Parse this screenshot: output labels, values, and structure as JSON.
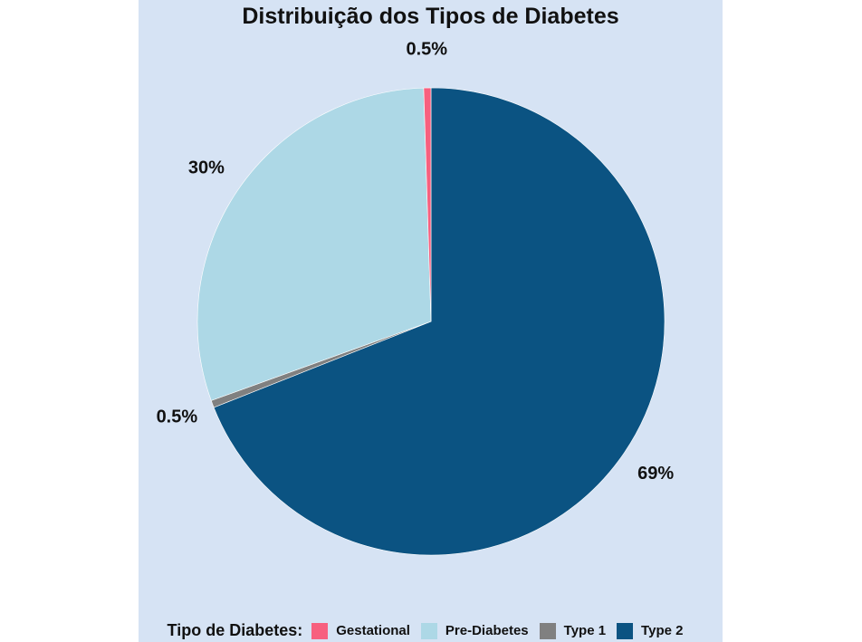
{
  "chart_data": {
    "type": "pie",
    "title": "Distribuição dos Tipos de Diabetes",
    "legend_title": "Tipo de Diabetes:",
    "legend_position": "bottom",
    "slices": [
      {
        "name": "Gestational",
        "value": 0.5,
        "label": "0.5%",
        "color": "#f7607f"
      },
      {
        "name": "Pre-Diabetes",
        "value": 30,
        "label": "30%",
        "color": "#add8e6"
      },
      {
        "name": "Type 1",
        "value": 0.5,
        "label": "0.5%",
        "color": "#808080"
      },
      {
        "name": "Type 2",
        "value": 69,
        "label": "69%",
        "color": "#0b5382"
      }
    ]
  }
}
